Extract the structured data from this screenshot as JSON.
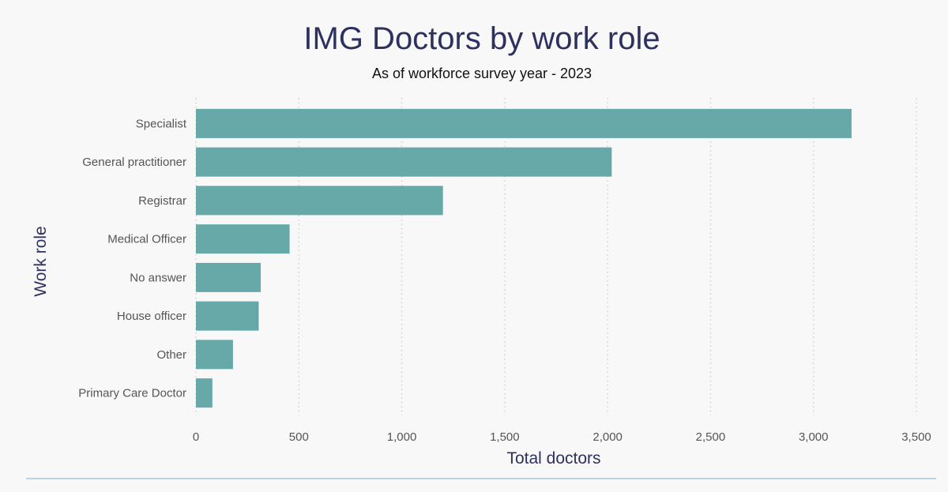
{
  "chart_data": {
    "type": "bar",
    "orientation": "horizontal",
    "title": "IMG Doctors by work role",
    "subtitle": "As of workforce survey year - 2023",
    "xlabel": "Total doctors",
    "ylabel": "Work role",
    "categories": [
      "Specialist",
      "General practitioner",
      "Registrar",
      "Medical Officer",
      "No answer",
      "House officer",
      "Other",
      "Primary Care Doctor"
    ],
    "values": [
      3185,
      2020,
      1200,
      455,
      315,
      305,
      180,
      80
    ],
    "xlim": [
      0,
      3500
    ],
    "xticks": [
      0,
      500,
      1000,
      1500,
      2000,
      2500,
      3000,
      3500
    ],
    "xtick_labels": [
      "0",
      "500",
      "1,000",
      "1,500",
      "2,000",
      "2,500",
      "3,000",
      "3,500"
    ],
    "grid": "vertical-dotted",
    "legend": "none",
    "colors": {
      "bar": "#66a9a8",
      "title": "#2e3160",
      "subtitle": "#111111",
      "tick_label": "#555555",
      "axis_label": "#2e3160",
      "grid": "#cfcfcf",
      "footer_line": "#b9d3e3"
    }
  }
}
